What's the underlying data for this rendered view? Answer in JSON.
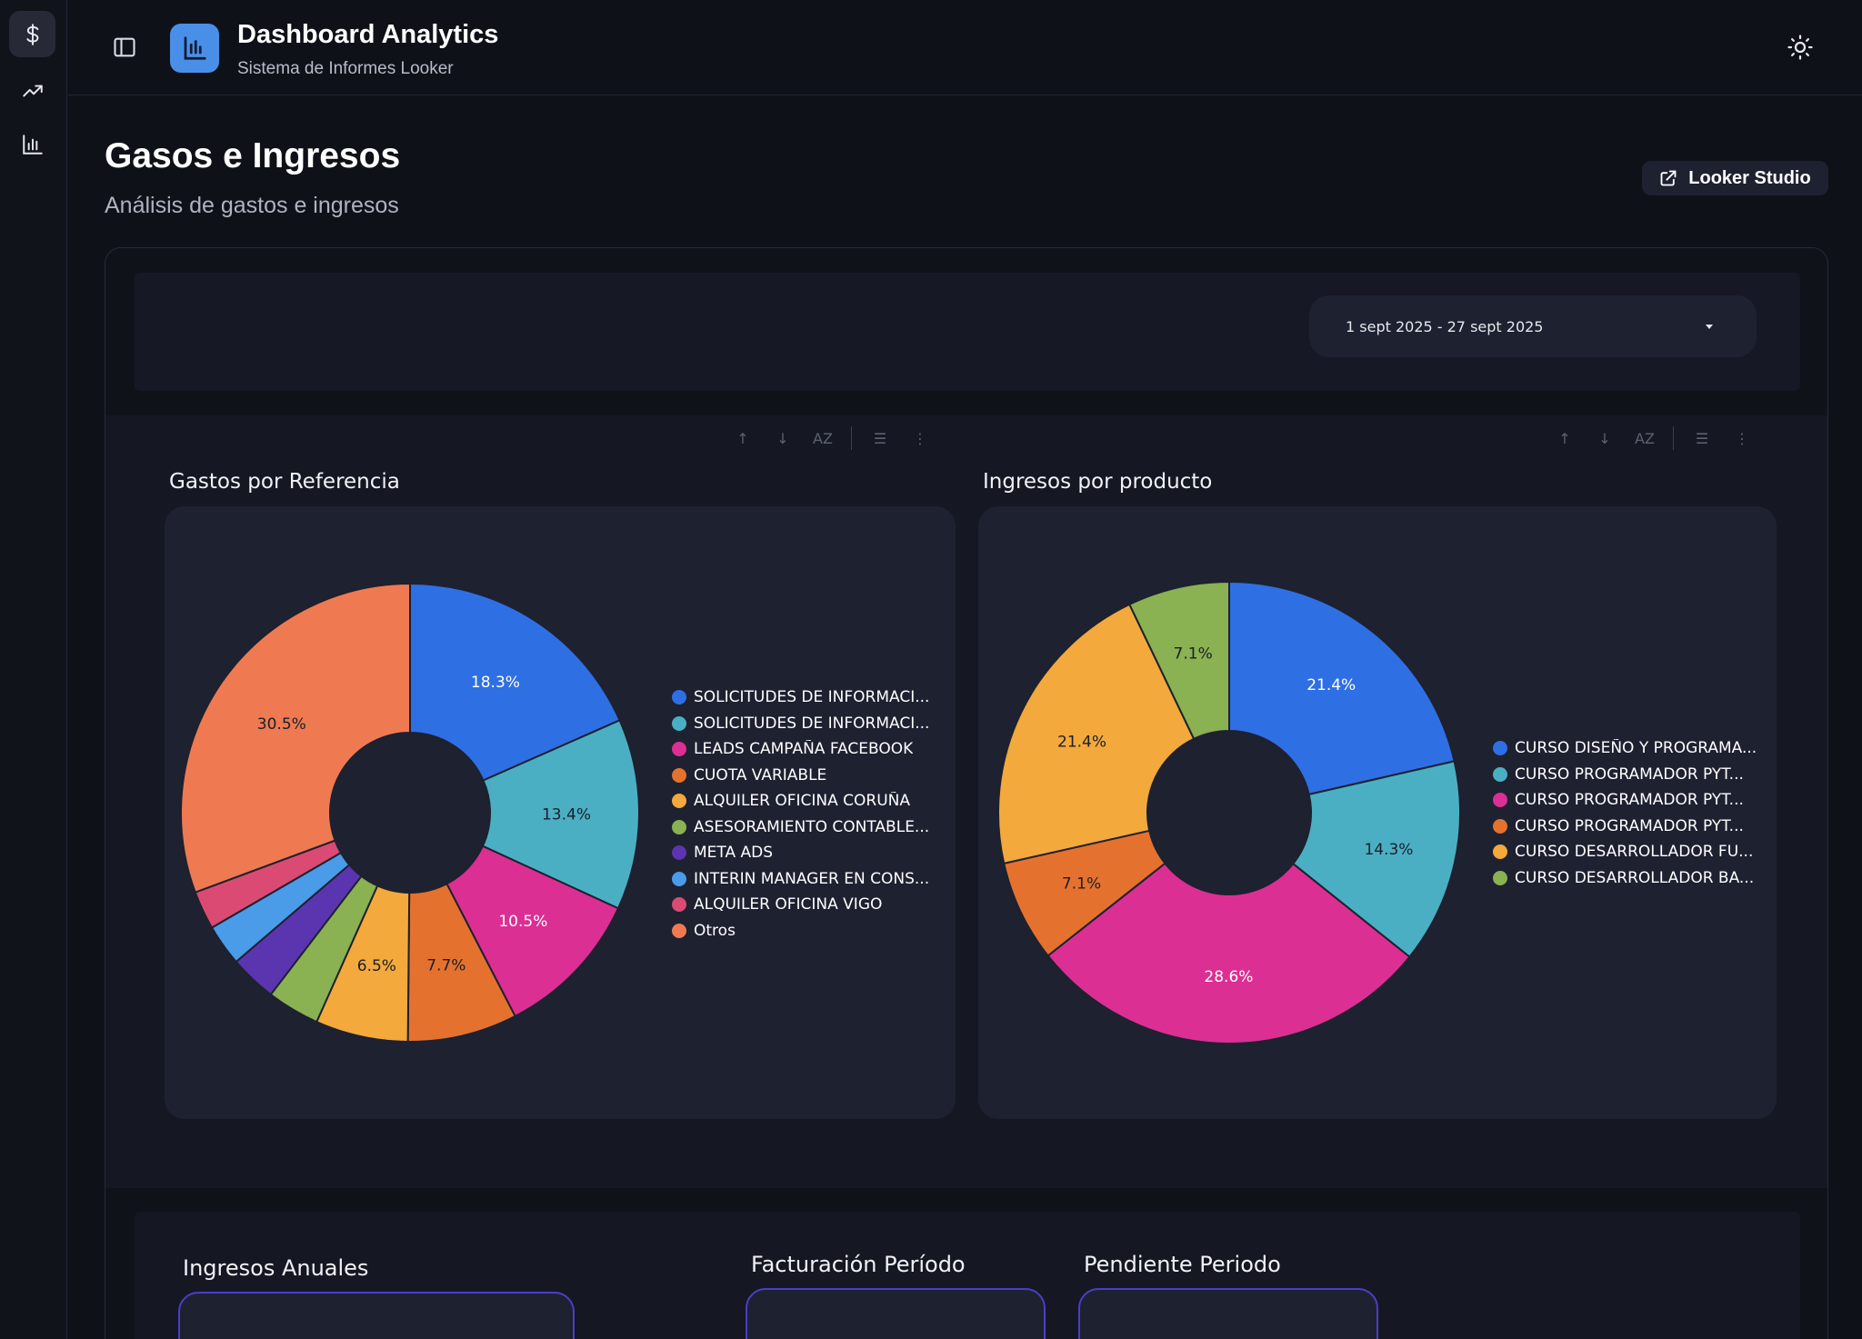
{
  "app": {
    "title": "Dashboard Analytics",
    "subtitle": "Sistema de Informes Looker",
    "logo_color": "#4a8fe7"
  },
  "rail": {
    "items": [
      {
        "icon": "dollar-icon",
        "active": true
      },
      {
        "icon": "trending-up-icon",
        "active": false
      },
      {
        "icon": "bar-chart-icon",
        "active": false
      }
    ]
  },
  "page": {
    "title": "Gasos e Ingresos",
    "subtitle": "Análisis de gastos e ingresos",
    "looker_button": "Looker Studio"
  },
  "filters": {
    "date_range": "1 sept 2025 - 27 sept 2025"
  },
  "toolbar": {
    "sort_desc_glyph": "↑",
    "sort_asc_glyph": "↓",
    "sort_az_glyph": "AZ",
    "filter_glyph": "☰",
    "more_glyph": "⋮"
  },
  "chart_data": [
    {
      "type": "pie",
      "donut": true,
      "title": "Gastos por Referencia",
      "legend_position": "right",
      "labels": [
        "SOLICITUDES DE INFORMACI...",
        "SOLICITUDES DE INFORMACI...",
        "LEADS CAMPAÑA FACEBOOK",
        "CUOTA VARIABLE",
        "ALQUILER OFICINA CORUÑA",
        "ASESORAMIENTO CONTABLE...",
        "META ADS",
        "INTERIN MANAGER EN CONS...",
        "ALQUILER OFICINA VIGO",
        "Otros"
      ],
      "values": [
        18.3,
        13.4,
        10.5,
        7.7,
        6.5,
        3.7,
        3.3,
        2.9,
        2.7,
        30.5
      ],
      "data_labels": [
        "18.3%",
        "13.4%",
        "10.5%",
        "7.7%",
        "6.5%",
        "",
        "",
        "",
        "",
        "30.5%"
      ],
      "colors": [
        "#2f6fe4",
        "#4bafc4",
        "#dc2f93",
        "#e4722e",
        "#f3a93b",
        "#8ab152",
        "#5b35b0",
        "#4a9be8",
        "#db4a72",
        "#ef7a52"
      ],
      "label_colors": [
        "#ffffff",
        "#1b1e29",
        "#ffffff",
        "#1b1e29",
        "#1b1e29",
        "",
        "",
        "",
        "",
        "#1b1e29"
      ]
    },
    {
      "type": "pie",
      "donut": true,
      "title": "Ingresos por producto",
      "legend_position": "right",
      "labels": [
        "CURSO DISEÑO Y PROGRAMA...",
        "CURSO PROGRAMADOR PYT...",
        "CURSO PROGRAMADOR PYT...",
        "CURSO PROGRAMADOR PYT...",
        "CURSO DESARROLLADOR FU...",
        "CURSO DESARROLLADOR BA..."
      ],
      "values": [
        21.4,
        14.3,
        28.6,
        7.1,
        21.4,
        7.1
      ],
      "data_labels": [
        "21.4%",
        "14.3%",
        "28.6%",
        "7.1%",
        "21.4%",
        "7.1%"
      ],
      "colors": [
        "#2f6fe4",
        "#4bafc4",
        "#dc2f93",
        "#e4722e",
        "#f3a93b",
        "#8ab152"
      ],
      "label_colors": [
        "#ffffff",
        "#1b1e29",
        "#ffffff",
        "#1b1e29",
        "#1b1e29",
        "#1b1e29"
      ]
    }
  ],
  "kpis": [
    {
      "title": "Ingresos Anuales"
    },
    {
      "title": "Facturación Período"
    },
    {
      "title": "Pendiente Periodo"
    }
  ]
}
